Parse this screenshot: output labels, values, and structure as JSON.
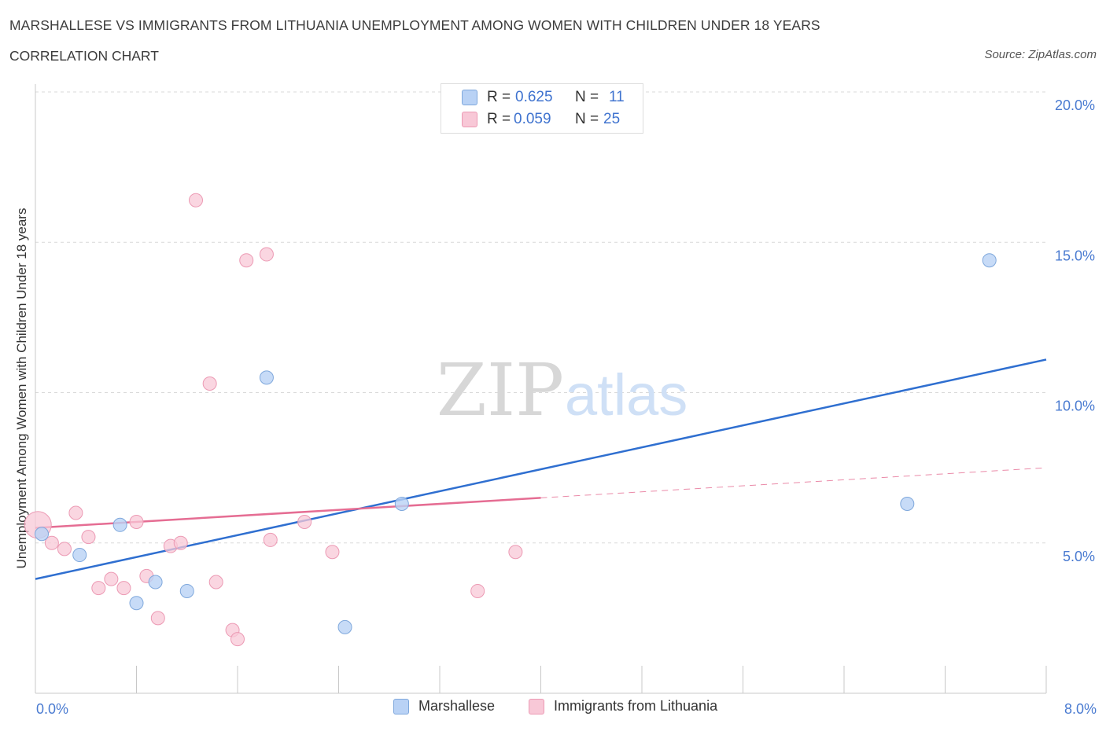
{
  "title": "MARSHALLESE VS IMMIGRANTS FROM LITHUANIA UNEMPLOYMENT AMONG WOMEN WITH CHILDREN UNDER 18 YEARS",
  "subtitle": "CORRELATION CHART",
  "source": "Source: ZipAtlas.com",
  "watermark": {
    "zip": "ZIP",
    "atlas": "atlas"
  },
  "legend": {
    "rows": [
      {
        "r_label": "R =",
        "r_value": "0.625",
        "n_label": "N =",
        "n_value": "11"
      },
      {
        "r_label": "R =",
        "r_value": "0.059",
        "n_label": "N =",
        "n_value": "25"
      }
    ]
  },
  "bottom_legend": [
    {
      "label": "Marshallese"
    },
    {
      "label": "Immigrants from Lithuania"
    }
  ],
  "colors": {
    "blue_fill": "#b9d2f5",
    "blue_stroke": "#7fa8dc",
    "blue_line": "#2f6fd0",
    "pink_fill": "#f8c8d7",
    "pink_stroke": "#ec9ab4",
    "pink_line": "#e56d93",
    "axis_text": "#4a7bd1",
    "grid": "#d9d9d9"
  },
  "chart_data": {
    "type": "scatter",
    "title": "MARSHALLESE VS IMMIGRANTS FROM LITHUANIA UNEMPLOYMENT AMONG WOMEN WITH CHILDREN UNDER 18 YEARS",
    "ylabel": "Unemployment Among Women with Children Under 18 years",
    "xlabel": "",
    "xlim": [
      0,
      8
    ],
    "ylim": [
      0,
      20
    ],
    "x_tick_labels": [
      "0.0%",
      "8.0%"
    ],
    "y_ticks": [
      5,
      10,
      15,
      20
    ],
    "y_tick_labels": [
      "5.0%",
      "10.0%",
      "15.0%",
      "20.0%"
    ],
    "grid": true,
    "series": [
      {
        "name": "Marshallese",
        "color": "blue",
        "points": [
          [
            0.05,
            5.3
          ],
          [
            0.35,
            4.6
          ],
          [
            0.67,
            5.6
          ],
          [
            0.8,
            3.0
          ],
          [
            0.95,
            3.7
          ],
          [
            1.2,
            3.4
          ],
          [
            1.83,
            10.5
          ],
          [
            2.45,
            2.2
          ],
          [
            2.9,
            6.3
          ],
          [
            6.9,
            6.3
          ],
          [
            7.55,
            14.4
          ]
        ],
        "trend": {
          "x": [
            0,
            8
          ],
          "y": [
            3.8,
            11.1
          ]
        }
      },
      {
        "name": "Immigrants from Lithuania",
        "color": "pink",
        "points": [
          [
            0.02,
            5.6
          ],
          [
            0.13,
            5.0
          ],
          [
            0.23,
            4.8
          ],
          [
            0.32,
            6.0
          ],
          [
            0.42,
            5.2
          ],
          [
            0.5,
            3.5
          ],
          [
            0.6,
            3.8
          ],
          [
            0.7,
            3.5
          ],
          [
            0.8,
            5.7
          ],
          [
            0.88,
            3.9
          ],
          [
            0.97,
            2.5
          ],
          [
            1.07,
            4.9
          ],
          [
            1.15,
            5.0
          ],
          [
            1.27,
            16.4
          ],
          [
            1.38,
            10.3
          ],
          [
            1.43,
            3.7
          ],
          [
            1.56,
            2.1
          ],
          [
            1.6,
            1.8
          ],
          [
            1.67,
            14.4
          ],
          [
            1.83,
            14.6
          ],
          [
            1.86,
            5.1
          ],
          [
            2.13,
            5.7
          ],
          [
            2.35,
            4.7
          ],
          [
            3.5,
            3.4
          ],
          [
            3.8,
            4.7
          ]
        ],
        "trend": {
          "x": [
            0,
            4
          ],
          "y": [
            5.5,
            6.5
          ]
        },
        "trend_extension": {
          "x": [
            4,
            8
          ],
          "y": [
            6.5,
            7.5
          ]
        }
      }
    ]
  }
}
